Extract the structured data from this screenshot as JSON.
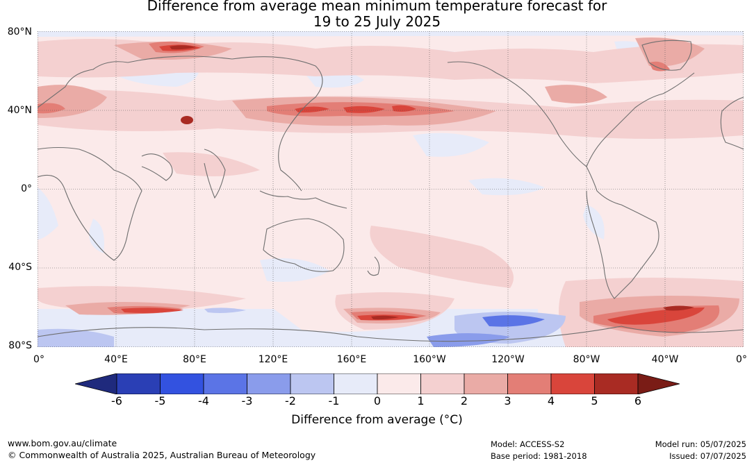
{
  "header": {
    "title_line1": "Difference from average mean minimum temperature forecast for",
    "title_line2": "19 to 25 July 2025"
  },
  "map": {
    "lat_labels": [
      "80°N",
      "40°N",
      "0°",
      "40°S",
      "80°S"
    ],
    "lon_labels": [
      "0°",
      "40°E",
      "80°E",
      "120°E",
      "160°E",
      "160°W",
      "120°W",
      "80°W",
      "40°W",
      "0°"
    ],
    "projection": "equirectangular, 0° to 360° longitude, 80°S to 80°N",
    "gridlines": true,
    "highlights": [
      {
        "region": "central Russia",
        "anomaly": "4 to 6"
      },
      {
        "region": "northern Pakistan",
        "anomaly": "5 to 6"
      },
      {
        "region": "north-west Pacific near Japan",
        "anomaly": "3 to 5"
      },
      {
        "region": "Southern Ocean south of New Zealand",
        "anomaly": "4 to 6"
      },
      {
        "region": "Southern Ocean south of South America and Atlantic",
        "anomaly": "4 to 6"
      },
      {
        "region": "Amundsen Sea",
        "anomaly": "-2 to -4"
      }
    ]
  },
  "colorbar": {
    "ticks": [
      "-6",
      "-5",
      "-4",
      "-3",
      "-2",
      "-1",
      "0",
      "1",
      "2",
      "3",
      "4",
      "5",
      "6"
    ],
    "colors": [
      "#1f2a7d",
      "#2a3fb5",
      "#3352e0",
      "#5b74e6",
      "#8a9ceb",
      "#bcc6f1",
      "#e7ebf9",
      "#fbeaea",
      "#f4d0d0",
      "#eaaba6",
      "#e37e76",
      "#d9453b",
      "#a92b23",
      "#7a1c16"
    ],
    "label": "Difference from average (°C)"
  },
  "footer": {
    "url": "www.bom.gov.au/climate",
    "copyright": "© Commonwealth of Australia 2025, Australian Bureau of Meteorology",
    "model": "Model: ACCESS-S2",
    "base_period": "Base period: 1981-2018",
    "model_run": "Model run: 05/07/2025",
    "issued": "Issued: 07/07/2025"
  }
}
